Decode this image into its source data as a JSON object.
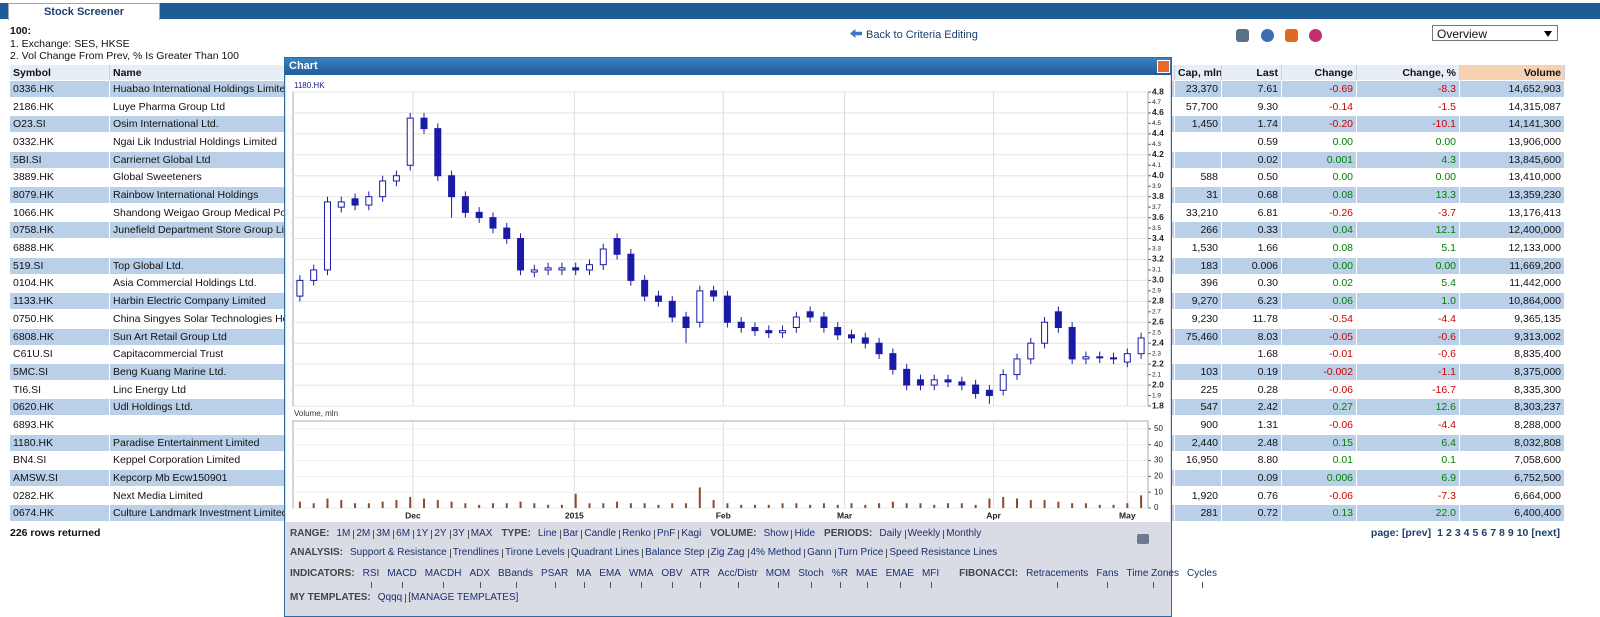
{
  "header": {
    "tab": "Stock Screener",
    "count": "100:",
    "filters": [
      "1. Exchange: SES, HKSE",
      "2. Vol Change From Prev, % Is Greater Than 100"
    ],
    "back": "Back to Criteria Editing",
    "view": "Overview"
  },
  "table": {
    "columns": [
      "Symbol",
      "Name",
      "Cap, mln",
      "Last",
      "Change",
      "Change, %",
      "Volume"
    ],
    "rows": [
      [
        "0336.HK",
        "Huabao International Holdings Limited",
        "23,370",
        "7.61",
        "-0.69",
        "-8.3",
        "14,652,903"
      ],
      [
        "2186.HK",
        "Luye Pharma Group Ltd",
        "57,700",
        "9.30",
        "-0.14",
        "-1.5",
        "14,315,087"
      ],
      [
        "O23.SI",
        "Osim International Ltd.",
        "1,450",
        "1.74",
        "-0.20",
        "-10.1",
        "14,141,300"
      ],
      [
        "0332.HK",
        "Ngai Lik Industrial Holdings Limited",
        null,
        "0.59",
        "0.00",
        "0.00",
        "13,906,000"
      ],
      [
        "5BI.SI",
        "Carriernet Global Ltd",
        null,
        "0.02",
        "0.001",
        "4.3",
        "13,845,600"
      ],
      [
        "3889.HK",
        "Global Sweeteners",
        "588",
        "0.50",
        "0.00",
        "0.00",
        "13,410,000"
      ],
      [
        "8079.HK",
        "Rainbow International Holdings",
        "31",
        "0.68",
        "0.08",
        "13.3",
        "13,359,230"
      ],
      [
        "1066.HK",
        "Shandong Weigao Group Medical Polym",
        "33,210",
        "6.81",
        "-0.26",
        "-3.7",
        "13,176,413"
      ],
      [
        "0758.HK",
        "Junefield Department Store Group Limit",
        "266",
        "0.33",
        "0.04",
        "12.1",
        "12,400,000"
      ],
      [
        "6888.HK",
        null,
        "1,530",
        "1.66",
        "0.08",
        "5.1",
        "12,133,000"
      ],
      [
        "519.SI",
        "Top Global Ltd.",
        "183",
        "0.006",
        "0.00",
        "0.00",
        "11,669,200"
      ],
      [
        "0104.HK",
        "Asia Commercial Holdings Ltd.",
        "396",
        "0.30",
        "0.02",
        "5.4",
        "11,442,000"
      ],
      [
        "1133.HK",
        "Harbin Electric Company Limited",
        "9,270",
        "6.23",
        "0.06",
        "1.0",
        "10,864,000"
      ],
      [
        "0750.HK",
        "China Singyes Solar Technologies Hold",
        "9,230",
        "11.78",
        "-0.54",
        "-4.4",
        "9,365,135"
      ],
      [
        "6808.HK",
        "Sun Art Retail Group Ltd",
        "75,460",
        "8.03",
        "-0.05",
        "-0.6",
        "9,313,002"
      ],
      [
        "C61U.SI",
        "Capitacommercial Trust",
        null,
        "1.68",
        "-0.01",
        "-0.6",
        "8,835,400"
      ],
      [
        "5MC.SI",
        "Beng Kuang Marine Ltd.",
        "103",
        "0.19",
        "-0.002",
        "-1.1",
        "8,375,000"
      ],
      [
        "TI6.SI",
        "Linc Energy Ltd",
        "225",
        "0.28",
        "-0.06",
        "-16.7",
        "8,335,300"
      ],
      [
        "0620.HK",
        "Udl Holdings Ltd.",
        "547",
        "2.42",
        "0.27",
        "12.6",
        "8,303,237"
      ],
      [
        "6893.HK",
        null,
        "900",
        "1.31",
        "-0.06",
        "-4.4",
        "8,288,000"
      ],
      [
        "1180.HK",
        "Paradise Entertainment Limited",
        "2,440",
        "2.48",
        "0.15",
        "6.4",
        "8,032,808"
      ],
      [
        "BN4.SI",
        "Keppel Corporation Limited",
        "16,950",
        "8.80",
        "0.01",
        "0.1",
        "7,058,600"
      ],
      [
        "AMSW.SI",
        "Kepcorp Mb Ecw150901",
        null,
        "0.09",
        "0.006",
        "6.9",
        "6,752,500"
      ],
      [
        "0282.HK",
        "Next Media Limited",
        "1,920",
        "0.76",
        "-0.06",
        "-7.3",
        "6,664,000"
      ],
      [
        "0674.HK",
        "Culture Landmark Investment Limited",
        "281",
        "0.72",
        "0.13",
        "22.0",
        "6,400,400"
      ]
    ]
  },
  "footer": {
    "rows_returned": "226 rows returned",
    "page_label": "page:",
    "prev": "[prev]",
    "pages": [
      1,
      2,
      3,
      4,
      5,
      6,
      7,
      8,
      9,
      10
    ],
    "next": "[next]"
  },
  "popup": {
    "title": "Chart",
    "controls": [
      [
        {
          "label": "RANGE:",
          "options": [
            "1M",
            "2M",
            "3M",
            "6M",
            "1Y",
            "2Y",
            "3Y",
            "MAX"
          ]
        },
        {
          "label": "TYPE:",
          "options": [
            "Line",
            "Bar",
            "Candle",
            "Renko",
            "PnF",
            "Kagi"
          ]
        },
        {
          "label": "VOLUME:",
          "options": [
            "Show",
            "Hide"
          ]
        },
        {
          "label": "PERIODS:",
          "options": [
            "Daily",
            "Weekly",
            "Monthly"
          ]
        }
      ],
      [
        {
          "label": "ANALYSIS:",
          "options": [
            "Support & Resistance",
            "Trendlines",
            "Tirone Levels",
            "Quadrant Lines",
            "Balance Step",
            "Zig Zag",
            "4% Method",
            "Gann",
            "Turn Price",
            "Speed Resistance Lines"
          ]
        }
      ],
      [
        {
          "label": "INDICATORS:",
          "options": [
            "RSI",
            "MACD",
            "MACDH",
            "ADX",
            "BBands",
            "PSAR",
            "MA",
            "EMA",
            "WMA",
            "OBV",
            "ATR",
            "Acc/Distr",
            "MOM",
            "Stoch",
            "%R",
            "MAE",
            "EMAE",
            "MFI"
          ]
        },
        {
          "label": "FIBONACCI:",
          "options": [
            "Retracements",
            "Fans",
            "Time Zones",
            "Cycles"
          ]
        }
      ],
      [
        {
          "label": "MY TEMPLATES:",
          "options": [
            "Qqqq",
            "[MANAGE TEMPLATES]"
          ]
        }
      ]
    ]
  },
  "chart_data": {
    "type": "candlestick",
    "label": "1180.HK",
    "color": "#1a1aa8",
    "grid": true,
    "open": [
      2.85,
      3.0,
      3.1,
      3.7,
      3.78,
      3.72,
      3.8,
      3.95,
      4.1,
      4.55,
      4.45,
      4.0,
      3.8,
      3.65,
      3.6,
      3.5,
      3.4,
      3.08,
      3.1,
      3.1,
      3.12,
      3.1,
      3.15,
      3.4,
      3.25,
      3.0,
      2.85,
      2.8,
      2.65,
      2.6,
      2.9,
      2.85,
      2.6,
      2.55,
      2.52,
      2.5,
      2.55,
      2.7,
      2.65,
      2.55,
      2.48,
      2.45,
      2.4,
      2.3,
      2.15,
      2.05,
      2.0,
      2.05,
      2.03,
      2.0,
      1.95,
      1.95,
      2.1,
      2.25,
      2.4,
      2.7,
      2.55,
      2.25,
      2.27,
      2.26,
      2.22,
      2.3
    ],
    "high": [
      3.05,
      3.15,
      3.8,
      3.8,
      3.83,
      3.85,
      4.0,
      4.05,
      4.6,
      4.6,
      4.5,
      4.05,
      3.85,
      3.7,
      3.65,
      3.55,
      3.45,
      3.15,
      3.17,
      3.17,
      3.17,
      3.2,
      3.35,
      3.45,
      3.3,
      3.05,
      2.9,
      2.85,
      2.7,
      2.95,
      2.95,
      2.9,
      2.65,
      2.6,
      2.57,
      2.57,
      2.7,
      2.75,
      2.7,
      2.6,
      2.53,
      2.5,
      2.45,
      2.35,
      2.2,
      2.1,
      2.1,
      2.1,
      2.08,
      2.05,
      2.0,
      2.15,
      2.3,
      2.45,
      2.65,
      2.75,
      2.6,
      2.32,
      2.32,
      2.31,
      2.35,
      2.5
    ],
    "low": [
      2.8,
      2.95,
      3.05,
      3.65,
      3.67,
      3.67,
      3.75,
      3.9,
      4.05,
      4.4,
      3.95,
      3.6,
      3.6,
      3.55,
      3.45,
      3.35,
      3.05,
      3.03,
      3.05,
      3.05,
      3.05,
      3.05,
      3.1,
      3.2,
      2.95,
      2.8,
      2.75,
      2.6,
      2.4,
      2.55,
      2.8,
      2.55,
      2.5,
      2.47,
      2.45,
      2.45,
      2.5,
      2.6,
      2.5,
      2.43,
      2.4,
      2.35,
      2.25,
      2.1,
      1.95,
      1.95,
      1.95,
      1.98,
      1.95,
      1.87,
      1.82,
      1.9,
      2.05,
      2.2,
      2.35,
      2.5,
      2.2,
      2.2,
      2.21,
      2.2,
      2.17,
      2.25
    ],
    "close": [
      3.0,
      3.1,
      3.75,
      3.75,
      3.72,
      3.8,
      3.95,
      4.0,
      4.55,
      4.45,
      4.0,
      3.8,
      3.65,
      3.6,
      3.5,
      3.4,
      3.1,
      3.1,
      3.12,
      3.12,
      3.1,
      3.15,
      3.3,
      3.25,
      3.0,
      2.85,
      2.8,
      2.65,
      2.55,
      2.9,
      2.85,
      2.6,
      2.55,
      2.52,
      2.5,
      2.52,
      2.65,
      2.65,
      2.55,
      2.48,
      2.45,
      2.4,
      2.3,
      2.15,
      2.0,
      2.0,
      2.05,
      2.03,
      2.0,
      1.92,
      1.9,
      2.1,
      2.25,
      2.4,
      2.6,
      2.55,
      2.25,
      2.27,
      2.26,
      2.25,
      2.3,
      2.45
    ],
    "ylim": [
      1.8,
      4.8
    ],
    "yticks": [
      1.8,
      1.9,
      {
        "value": 2,
        "label": "2.0"
      },
      2.1,
      2.2,
      2.3,
      2.4,
      2.5,
      2.6,
      2.7,
      2.8,
      2.9,
      {
        "value": 3,
        "label": "3.0"
      },
      3.1,
      3.2,
      3.3,
      3.4,
      3.5,
      3.6,
      3.7,
      3.8,
      3.9,
      {
        "value": 4,
        "label": "4.0"
      },
      4.1,
      4.2,
      4.3,
      4.4,
      4.5,
      4.6,
      4.7,
      4.8
    ],
    "xlim": [
      0,
      62
    ],
    "xticks": [
      {
        "value": 8.7,
        "label": "Dec"
      },
      {
        "value": 20.4,
        "label": "2015"
      },
      {
        "value": 31.2,
        "label": "Feb"
      },
      {
        "value": 40,
        "label": "Mar"
      },
      {
        "value": 50.8,
        "label": "Apr"
      },
      {
        "value": 60.5,
        "label": "May"
      }
    ],
    "volume": {
      "label": "Volume, mln",
      "color": "#8b4a2b",
      "ylim": [
        0,
        55
      ],
      "yticks": [
        0,
        10,
        20,
        30,
        40,
        50
      ],
      "values": [
        4,
        3,
        6,
        5,
        3,
        3,
        4,
        5,
        7,
        6,
        5,
        4,
        3,
        2,
        3,
        3,
        4,
        3,
        2,
        2,
        9,
        3,
        3,
        4,
        3,
        3,
        2,
        3,
        3,
        13,
        5,
        3,
        2,
        2,
        2,
        3,
        3,
        2,
        3,
        2,
        3,
        2,
        3,
        4,
        3,
        3,
        2,
        3,
        3,
        2,
        6,
        7,
        6,
        5,
        5,
        4,
        3,
        3,
        2,
        2,
        3,
        8
      ]
    }
  }
}
